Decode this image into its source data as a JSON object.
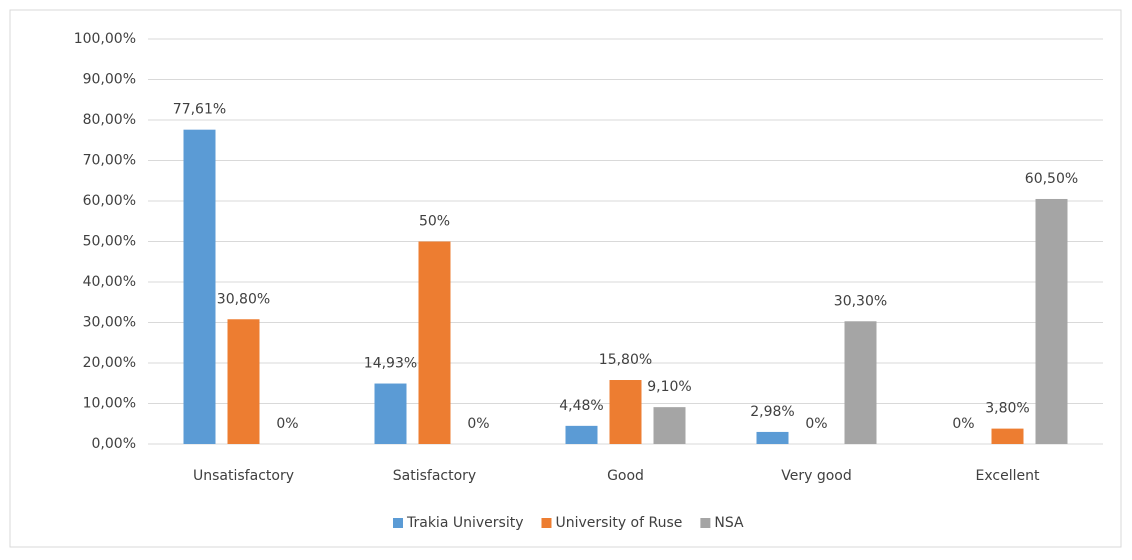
{
  "chart_data": {
    "type": "bar",
    "categories": [
      "Unsatisfactory",
      "Satisfactory",
      "Good",
      "Very good",
      "Excellent"
    ],
    "series": [
      {
        "name": "Trakia University",
        "color": "#5b9bd5",
        "values": [
          77.61,
          14.93,
          4.48,
          2.98,
          0
        ],
        "value_labels": [
          "77,61%",
          "14,93%",
          "4,48%",
          "2,98%",
          "0%"
        ]
      },
      {
        "name": "University of Ruse",
        "color": "#ed7d31",
        "values": [
          30.8,
          50,
          15.8,
          0,
          3.8
        ],
        "value_labels": [
          "30,80%",
          "50%",
          "15,80%",
          "0%",
          "3,80%"
        ]
      },
      {
        "name": "NSA",
        "color": "#a5a5a5",
        "values": [
          0,
          0,
          9.1,
          30.3,
          60.5
        ],
        "value_labels": [
          "0%",
          "0%",
          "9,10%",
          "30,30%",
          "60,50%"
        ]
      }
    ],
    "ylim": [
      0,
      100
    ],
    "yticks": [
      {
        "value": 0,
        "label": "0,00%"
      },
      {
        "value": 10,
        "label": "10,00%"
      },
      {
        "value": 20,
        "label": "20,00%"
      },
      {
        "value": 30,
        "label": "30,00%"
      },
      {
        "value": 40,
        "label": "40,00%"
      },
      {
        "value": 50,
        "label": "50,00%"
      },
      {
        "value": 60,
        "label": "60,00%"
      },
      {
        "value": 70,
        "label": "70,00%"
      },
      {
        "value": 80,
        "label": "80,00%"
      },
      {
        "value": 90,
        "label": "90,00%"
      },
      {
        "value": 100,
        "label": "100,00%"
      }
    ],
    "grid": true,
    "legend": "bottom"
  }
}
